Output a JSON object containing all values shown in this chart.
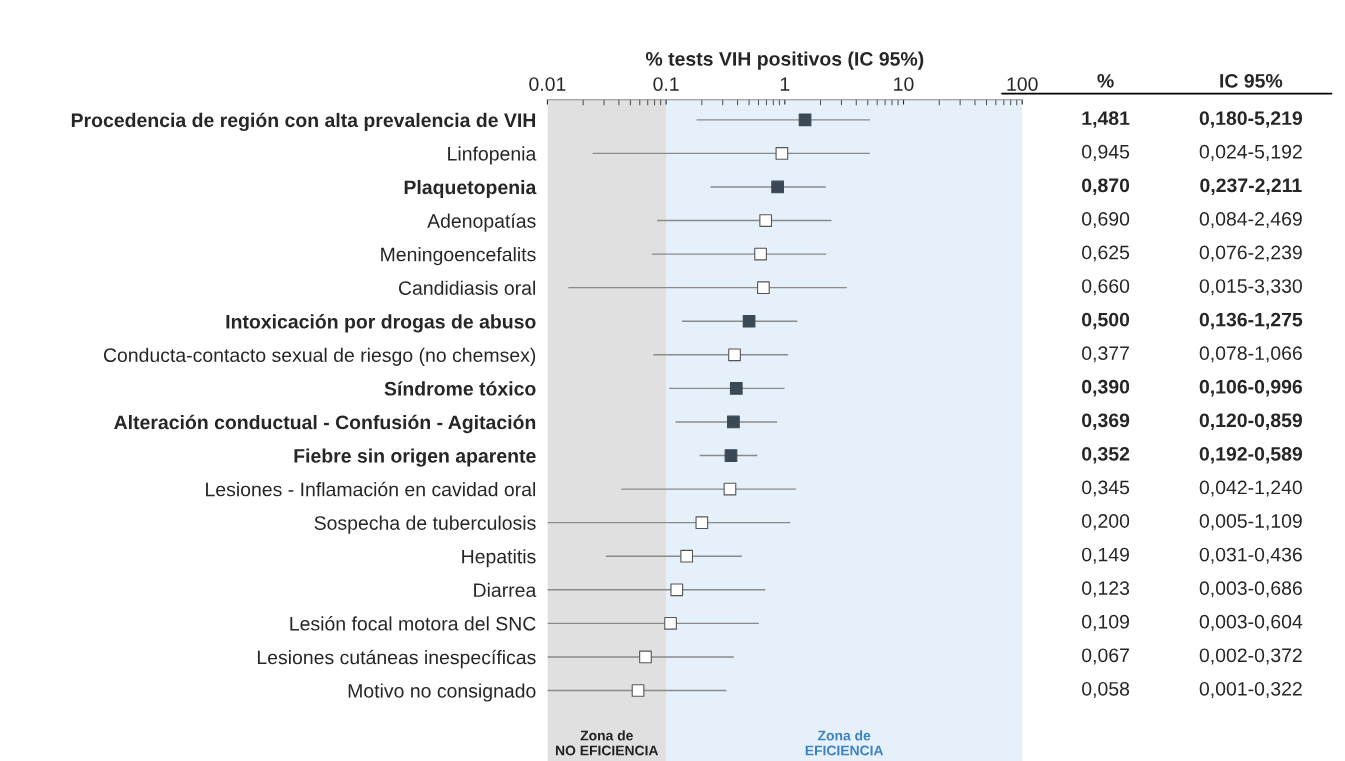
{
  "chart_data": {
    "type": "scatter",
    "orientation": "horizontal",
    "xlabel": "% tests VIH positivos (IC 95%)",
    "categories": [
      "Procedencia de región con alta prevalencia de VIH",
      "Linfopenia",
      "Plaquetopenia",
      "Adenopatías",
      "Meningoencefalits",
      "Candidiasis oral",
      "Intoxicación por drogas de abuso",
      "Conducta-contacto sexual de riesgo (no chemsex)",
      "Síndrome tóxico",
      "Alteración conductual - Confusión - Agitación",
      "Fiebre sin origen aparente",
      "Lesiones - Inflamación en cavidad oral",
      "Sospecha de tuberculosis",
      "Hepatitis",
      "Diarrea",
      "Lesión focal motora del SNC",
      "Lesiones cutáneas inespecíficas",
      "Motivo no consignado"
    ],
    "values": [
      1.481,
      0.945,
      0.87,
      0.69,
      0.625,
      0.66,
      0.5,
      0.377,
      0.39,
      0.369,
      0.352,
      0.345,
      0.2,
      0.149,
      0.123,
      0.109,
      0.067,
      0.058
    ],
    "colors": [
      "#3b4856",
      "#ffffff",
      "#3b4856",
      "#ffffff",
      "#ffffff",
      "#ffffff",
      "#3b4856",
      "#ffffff",
      "#3b4856",
      "#3b4856",
      "#3b4856",
      "#ffffff",
      "#ffffff",
      "#ffffff",
      "#ffffff",
      "#ffffff",
      "#ffffff",
      "#ffffff"
    ],
    "errors": [
      [
        0.18,
        5.219
      ],
      [
        0.024,
        5.192
      ],
      [
        0.237,
        2.211
      ],
      [
        0.084,
        2.469
      ],
      [
        0.076,
        2.239
      ],
      [
        0.015,
        3.33
      ],
      [
        0.136,
        1.275
      ],
      [
        0.078,
        1.066
      ],
      [
        0.106,
        0.996
      ],
      [
        0.12,
        0.859
      ],
      [
        0.192,
        0.589
      ],
      [
        0.042,
        1.24
      ],
      [
        0.01,
        1.109
      ],
      [
        0.031,
        0.436
      ],
      [
        0.01,
        0.686
      ],
      [
        0.01,
        0.604
      ],
      [
        0.01,
        0.372
      ],
      [
        0.01,
        0.322
      ]
    ],
    "value_labels": [
      "1,481",
      "0,945",
      "0,870",
      "0,690",
      "0,625",
      "0,660",
      "0,500",
      "0,377",
      "0,390",
      "0,369",
      "0,352",
      "0,345",
      "0,200",
      "0,149",
      "0,123",
      "0,109",
      "0,067",
      "0,058"
    ],
    "annotations": [
      "%",
      "IC 95%",
      "0,180-5,219",
      "0,024-5,192",
      "0,237-2,211",
      "0,084-2,469",
      "0,076-2,239",
      "0,015-3,330",
      "0,136-1,275",
      "0,078-1,066",
      "0,106-0,996",
      "0,120-0,859",
      "0,192-0,589",
      "0,042-1,240",
      "0,005-1,109",
      "0,031-0,436",
      "0,003-0,686",
      "0,003-0,604",
      "0,002-0,372",
      "0,001-0,322"
    ],
    "log": "x",
    "xlim": [
      0.01,
      100
    ],
    "xticks": [
      0.01,
      0.1,
      1,
      10,
      100
    ],
    "grid": false,
    "marker": "square",
    "legend": false,
    "bands": [
      {
        "axis": "x",
        "from": 0.01,
        "to": 0.1,
        "label": "Zona de\nNO EFICIENCIA",
        "color": "#e0e0e0"
      },
      {
        "axis": "x",
        "from": 0.1,
        "to": 100,
        "label": "Zona de\nEFICIENCIA",
        "color": "#e6f0fa"
      }
    ]
  }
}
